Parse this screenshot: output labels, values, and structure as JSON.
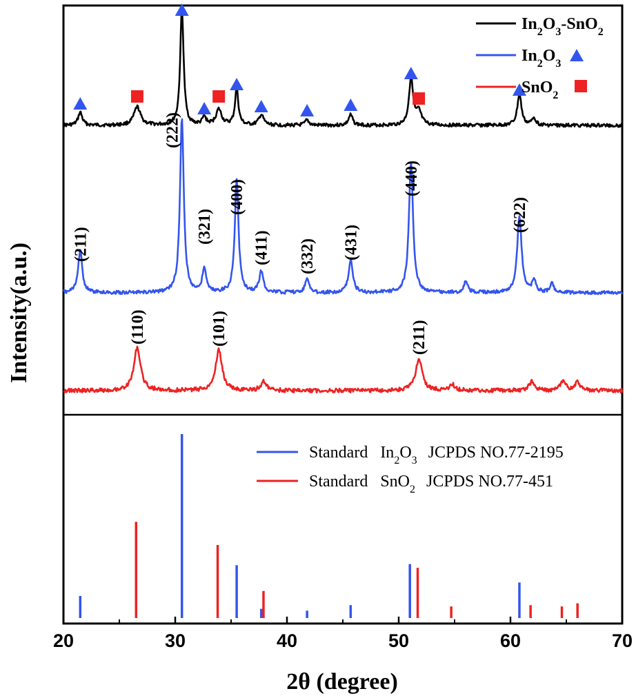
{
  "chart_data": {
    "type": "line",
    "xlabel": "2θ (degree)",
    "ylabel": "Intensity(a.u.)",
    "xlim": [
      20,
      70
    ],
    "xticks": [
      "20",
      "30",
      "40",
      "50",
      "60",
      "70"
    ],
    "top_panel": {
      "series": [
        {
          "name": "In2O3-SnO2",
          "color": "#000000",
          "peaks": [
            {
              "x": 21.5,
              "h": 0.05,
              "w": 0.22
            },
            {
              "x": 26.6,
              "h": 0.07,
              "w": 0.35
            },
            {
              "x": 30.6,
              "h": 0.45,
              "w": 0.18
            },
            {
              "x": 32.6,
              "h": 0.03,
              "w": 0.2
            },
            {
              "x": 33.9,
              "h": 0.06,
              "w": 0.3
            },
            {
              "x": 35.5,
              "h": 0.14,
              "w": 0.18
            },
            {
              "x": 37.7,
              "h": 0.04,
              "w": 0.25
            },
            {
              "x": 41.8,
              "h": 0.02,
              "w": 0.2
            },
            {
              "x": 45.7,
              "h": 0.04,
              "w": 0.22
            },
            {
              "x": 51.1,
              "h": 0.18,
              "w": 0.22
            },
            {
              "x": 51.8,
              "h": 0.05,
              "w": 0.28
            },
            {
              "x": 60.8,
              "h": 0.12,
              "w": 0.22
            },
            {
              "x": 62.1,
              "h": 0.03,
              "w": 0.2
            }
          ]
        },
        {
          "name": "In2O3",
          "color": "#3355ee",
          "peaks": [
            {
              "x": 21.5,
              "h": 0.14,
              "w": 0.22
            },
            {
              "x": 30.6,
              "h": 0.58,
              "w": 0.2
            },
            {
              "x": 32.6,
              "h": 0.08,
              "w": 0.2
            },
            {
              "x": 35.5,
              "h": 0.37,
              "w": 0.2
            },
            {
              "x": 37.7,
              "h": 0.07,
              "w": 0.22
            },
            {
              "x": 41.8,
              "h": 0.05,
              "w": 0.2
            },
            {
              "x": 45.7,
              "h": 0.11,
              "w": 0.22
            },
            {
              "x": 51.1,
              "h": 0.43,
              "w": 0.22
            },
            {
              "x": 56.0,
              "h": 0.04,
              "w": 0.2
            },
            {
              "x": 60.8,
              "h": 0.25,
              "w": 0.24
            },
            {
              "x": 62.1,
              "h": 0.04,
              "w": 0.2
            },
            {
              "x": 63.7,
              "h": 0.03,
              "w": 0.2
            }
          ]
        },
        {
          "name": "SnO2",
          "color": "#ee2222",
          "peaks": [
            {
              "x": 26.6,
              "h": 0.15,
              "w": 0.35
            },
            {
              "x": 33.9,
              "h": 0.14,
              "w": 0.35
            },
            {
              "x": 37.9,
              "h": 0.03,
              "w": 0.3
            },
            {
              "x": 51.8,
              "h": 0.11,
              "w": 0.35
            },
            {
              "x": 54.8,
              "h": 0.02,
              "w": 0.3
            },
            {
              "x": 61.9,
              "h": 0.03,
              "w": 0.3
            },
            {
              "x": 64.7,
              "h": 0.03,
              "w": 0.3
            },
            {
              "x": 66.0,
              "h": 0.03,
              "w": 0.3
            }
          ]
        }
      ],
      "triangle_markers_2theta": [
        21.5,
        30.6,
        32.6,
        35.5,
        37.7,
        41.8,
        45.7,
        51.1,
        60.8
      ],
      "square_markers_2theta": [
        26.6,
        33.9,
        51.8
      ],
      "in2o3_hkl_labels": [
        {
          "x": 21.5,
          "label": "(211)"
        },
        {
          "x": 30.6,
          "label": "(222)"
        },
        {
          "x": 32.6,
          "label": "(321)"
        },
        {
          "x": 35.5,
          "label": "(400)"
        },
        {
          "x": 37.7,
          "label": "(411)"
        },
        {
          "x": 41.8,
          "label": "(332)"
        },
        {
          "x": 45.7,
          "label": "(431)"
        },
        {
          "x": 51.1,
          "label": "(440)"
        },
        {
          "x": 60.8,
          "label": "(622)"
        }
      ],
      "sno2_hkl_labels": [
        {
          "x": 26.6,
          "label": "(110)"
        },
        {
          "x": 33.9,
          "label": "(101)"
        },
        {
          "x": 51.8,
          "label": "(211)"
        }
      ]
    },
    "bottom_panel": {
      "type": "bar",
      "ylim": [
        0,
        100
      ],
      "series": [
        {
          "name": "Standard In2O3 JCPDS NO.77-2195",
          "color": "#3355ee",
          "x": [
            21.5,
            30.6,
            35.5,
            37.7,
            41.8,
            45.7,
            51.0,
            60.8
          ],
          "values": [
            12.0,
            100.0,
            28.7,
            5.0,
            4.0,
            7.0,
            29.3,
            19.3
          ]
        },
        {
          "name": "Standard SnO2 JCPDS NO.77-451",
          "color": "#ee2222",
          "x": [
            26.5,
            33.8,
            37.9,
            51.7,
            54.7,
            61.8,
            64.6,
            66.0
          ],
          "values": [
            52.3,
            39.7,
            14.7,
            27.3,
            6.3,
            7.0,
            6.3,
            8.0
          ]
        }
      ]
    },
    "legend_top": [
      {
        "base": "In",
        "sub1": "2",
        "mid": "O",
        "sub2": "3",
        "tail": "-SnO",
        "sub3": "2",
        "marker": ""
      },
      {
        "base": "In",
        "sub1": "2",
        "mid": "O",
        "sub2": "3",
        "tail": "",
        "sub3": "",
        "marker": "triangle"
      },
      {
        "base": "SnO",
        "sub1": "2",
        "mid": "",
        "sub2": "",
        "tail": "",
        "sub3": "",
        "marker": "square"
      }
    ],
    "legend_bottom": [
      {
        "standard": "Standard",
        "formula": "In",
        "sub1": "2",
        "mid": "O",
        "sub2": "3",
        "ref": "JCPDS NO.77-2195"
      },
      {
        "standard": "Standard",
        "formula": "SnO",
        "sub1": "2",
        "mid": "",
        "sub2": "",
        "ref": "JCPDS NO.77-451"
      }
    ],
    "colors": {
      "mixed": "#000000",
      "in2o3": "#3355ee",
      "sno2": "#ee2222"
    }
  }
}
